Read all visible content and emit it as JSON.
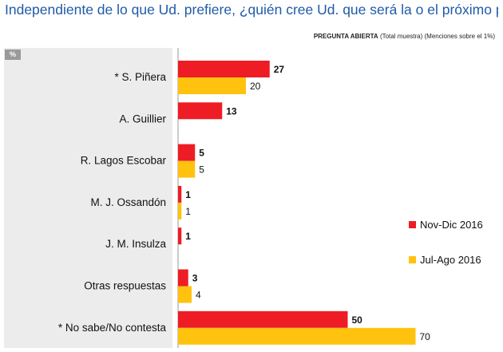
{
  "title": "Independiente de lo que Ud. prefiere, ¿quién cree Ud. que será la o el próximo presidente de Chile?",
  "note_bold": "PREGUNTA ABIERTA",
  "note_rest": "(Total muestra) (Menciones sobre el 1%)",
  "unit_badge": "%",
  "colors": {
    "nov_dic": "#ee1c25",
    "jul_ago": "#ffc20e"
  },
  "chart_data": {
    "type": "bar",
    "orientation": "horizontal",
    "title": "Independiente de lo que Ud. prefiere, ¿quién cree Ud. que será la o el próximo presidente de Chile?",
    "categories": [
      "* S. Piñera",
      "A. Guillier",
      "R. Lagos Escobar",
      "M. J. Ossandón",
      "J. M. Insulza",
      "Otras respuestas",
      "* No sabe/No contesta"
    ],
    "series": [
      {
        "name": "Nov-Dic 2016",
        "values": [
          27,
          13,
          5,
          1,
          1,
          3,
          50
        ]
      },
      {
        "name": "Jul-Ago 2016",
        "values": [
          20,
          null,
          5,
          1,
          null,
          4,
          70
        ]
      }
    ],
    "xlim": [
      0,
      70
    ],
    "unit": "%",
    "legend": "right"
  }
}
